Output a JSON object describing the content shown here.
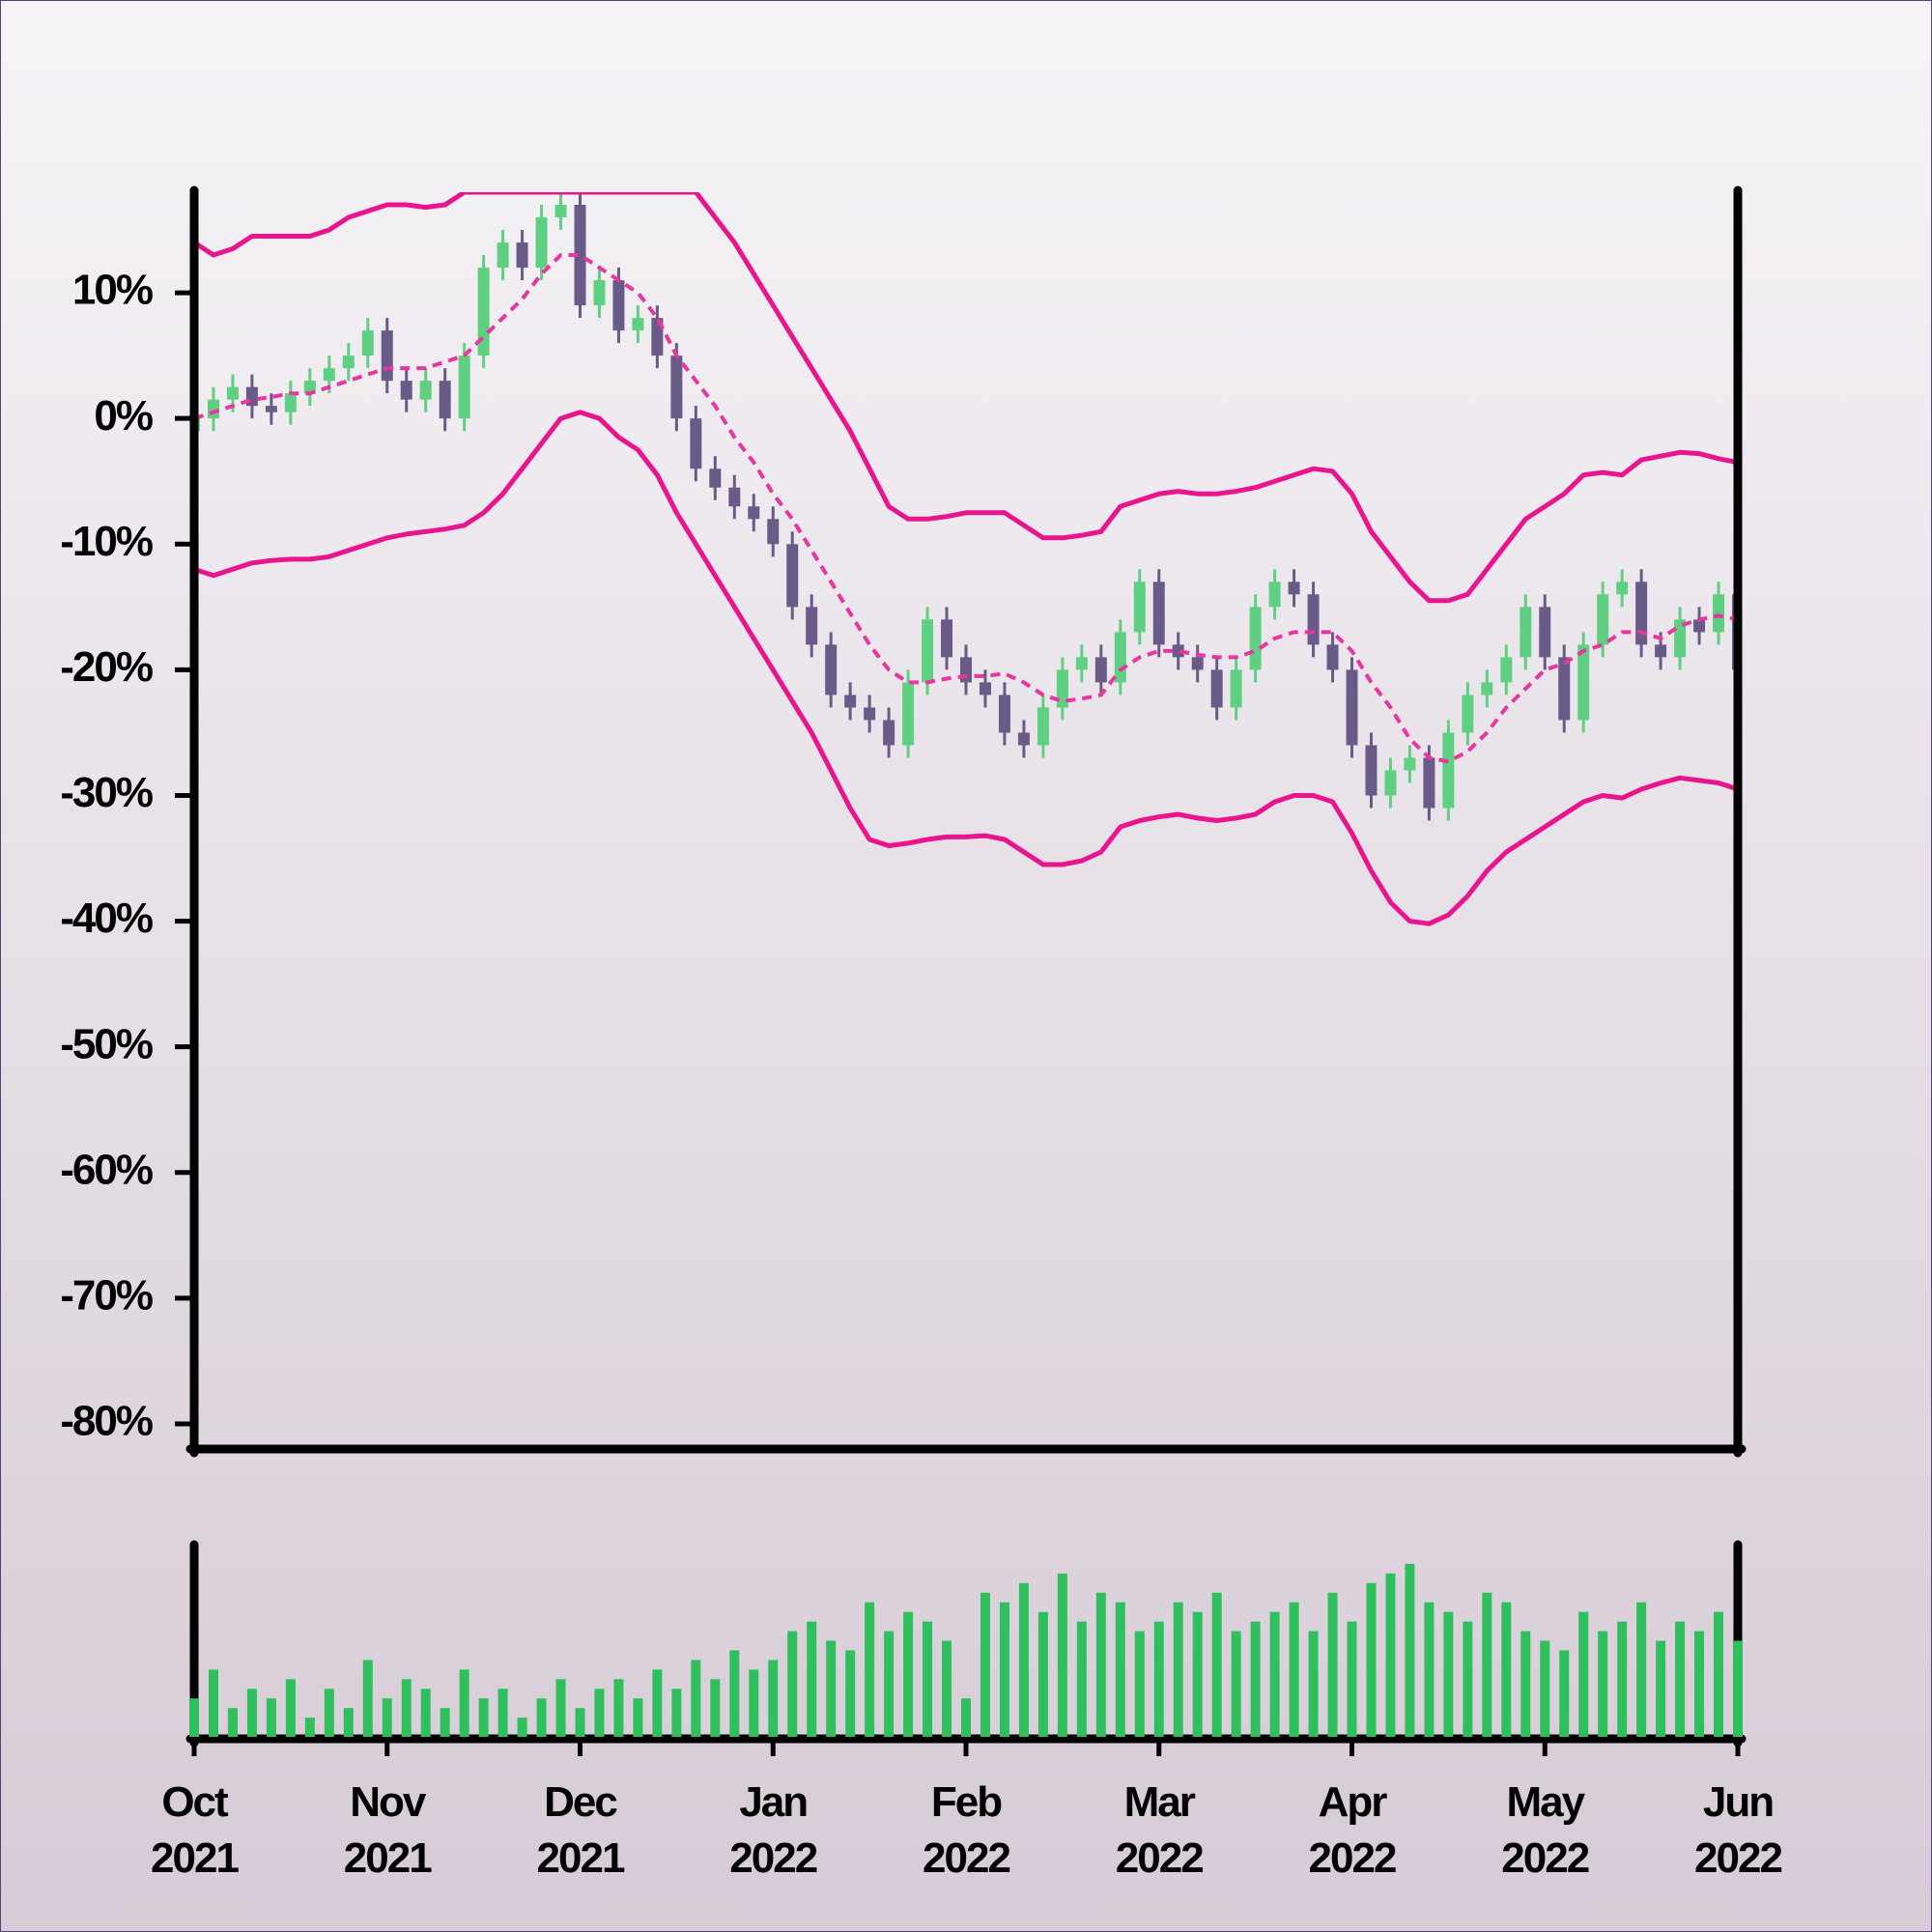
{
  "chart_data": [
    {
      "type": "candlestick",
      "open": [
        -1,
        0,
        1.5,
        2.5,
        1,
        0.5,
        2,
        3,
        4,
        5,
        7,
        3,
        1.5,
        3,
        0,
        5,
        12,
        14,
        12,
        16,
        17,
        9,
        11,
        7,
        8,
        5,
        0,
        -4,
        -5.5,
        -7,
        -8,
        -10,
        -15,
        -18,
        -22,
        -23,
        -24,
        -26,
        -21,
        -16,
        -19,
        -21,
        -22,
        -25,
        -26,
        -23,
        -20,
        -19,
        -21,
        -17,
        -13,
        -18,
        -19,
        -20,
        -23,
        -20,
        -15,
        -13,
        -14,
        -18,
        -20,
        -26,
        -30,
        -28,
        -27,
        -31,
        -25,
        -22,
        -21,
        -19,
        -15,
        -19,
        -24,
        -18,
        -14,
        -13,
        -18,
        -19,
        -16,
        -17,
        -14
      ],
      "high": [
        1,
        2.5,
        3.5,
        3.5,
        2,
        3,
        4,
        5,
        6,
        8,
        8,
        4,
        4,
        4,
        6,
        13,
        15,
        15,
        17,
        18,
        18,
        12,
        12,
        9,
        9,
        6,
        1,
        -3,
        -4.5,
        -6,
        -7,
        -9,
        -14,
        -17,
        -21,
        -22,
        -23,
        -20,
        -15,
        -15,
        -18,
        -20,
        -21,
        -24,
        -22,
        -19,
        -18,
        -18,
        -16,
        -12,
        -12,
        -17,
        -18,
        -19,
        -19,
        -14,
        -12,
        -12,
        -13,
        -17,
        -19,
        -25,
        -27,
        -26,
        -26,
        -24,
        -21,
        -20,
        -18,
        -14,
        -14,
        -18,
        -17,
        -13,
        -12,
        -12,
        -17,
        -15,
        -15,
        -13,
        -13
      ],
      "low": [
        -2,
        -1,
        0.5,
        0,
        -0.5,
        -0.5,
        1,
        2,
        3,
        4,
        2,
        0.5,
        0.5,
        -1,
        -1,
        4,
        11,
        11,
        11,
        15,
        8,
        8,
        6,
        6,
        4,
        -1,
        -5,
        -6.5,
        -8,
        -9,
        -11,
        -16,
        -19,
        -23,
        -24,
        -25,
        -27,
        -27,
        -22,
        -20,
        -22,
        -23,
        -26,
        -27,
        -27,
        -24,
        -21,
        -22,
        -22,
        -18,
        -19,
        -20,
        -21,
        -24,
        -24,
        -21,
        -16,
        -15,
        -19,
        -21,
        -27,
        -31,
        -31,
        -29,
        -32,
        -32,
        -26,
        -23,
        -22,
        -20,
        -20,
        -25,
        -25,
        -19,
        -15,
        -19,
        -20,
        -20,
        -18,
        -18,
        -21
      ],
      "close": [
        0,
        1.5,
        2.5,
        1,
        0.5,
        2,
        3,
        4,
        5,
        7,
        3,
        1.5,
        3,
        0,
        5,
        12,
        14,
        12,
        16,
        17,
        9,
        11,
        7,
        8,
        5,
        0,
        -4,
        -5.5,
        -7,
        -8,
        -10,
        -15,
        -18,
        -22,
        -23,
        -24,
        -26,
        -21,
        -16,
        -19,
        -21,
        -22,
        -25,
        -26,
        -23,
        -20,
        -19,
        -21,
        -17,
        -13,
        -18,
        -19,
        -20,
        -23,
        -20,
        -15,
        -13,
        -14,
        -18,
        -20,
        -26,
        -30,
        -28,
        -27,
        -31,
        -25,
        -22,
        -21,
        -19,
        -15,
        -19,
        -24,
        -18,
        -14,
        -13,
        -18,
        -19,
        -16,
        -17,
        -14,
        -20
      ],
      "up_color": "#5fd082",
      "down_color": "#6a5a88",
      "series": [
        {
          "color": "#e8158f",
          "dashed": false,
          "values": [
            14,
            13,
            13.5,
            14.5,
            14.5,
            14.5,
            14.5,
            15,
            16,
            16.5,
            17,
            17,
            16.8,
            17,
            18,
            18,
            18,
            18,
            18,
            18,
            18,
            18,
            18,
            18,
            18,
            18,
            18,
            16,
            14,
            11.5,
            9,
            6.5,
            4,
            1.5,
            -1,
            -4,
            -7,
            -8,
            -8,
            -7.8,
            -7.5,
            -7.5,
            -7.5,
            -8.5,
            -9.5,
            -9.5,
            -9.3,
            -9,
            -7,
            -6.5,
            -6,
            -5.8,
            -6,
            -6,
            -5.8,
            -5.5,
            -5,
            -4.5,
            -4,
            -4.2,
            -6,
            -9,
            -11,
            -13,
            -14.5,
            -14.5,
            -14,
            -12,
            -10,
            -8,
            -7,
            -6,
            -4.5,
            -4.3,
            -4.5,
            -3.3,
            -3,
            -2.7,
            -2.8,
            -3.2,
            -3.5
          ]
        },
        {
          "color": "#e8359f",
          "dashed": true,
          "values": [
            0,
            0.5,
            1,
            1.5,
            1.7,
            2,
            2,
            2.5,
            3,
            3.5,
            4,
            4,
            4,
            4.5,
            5,
            6.5,
            8,
            9.5,
            11.5,
            13,
            13,
            12,
            11,
            10,
            8,
            5,
            3,
            1,
            -1.5,
            -3.5,
            -6,
            -8,
            -10.5,
            -13,
            -15.5,
            -18,
            -20,
            -21,
            -21,
            -20.7,
            -20.5,
            -20.5,
            -20.3,
            -21,
            -22,
            -22.5,
            -22.3,
            -22,
            -20,
            -19,
            -18.5,
            -18.5,
            -18.8,
            -19,
            -19,
            -18.5,
            -17.5,
            -17,
            -17,
            -17,
            -18.5,
            -21,
            -23,
            -25.5,
            -27,
            -27.3,
            -26.5,
            -25,
            -23,
            -21.5,
            -20,
            -19.5,
            -18.5,
            -18,
            -17,
            -17,
            -17.5,
            -16.5,
            -16,
            -15.7,
            -16
          ]
        },
        {
          "color": "#e8158f",
          "dashed": false,
          "values": [
            -12,
            -12.5,
            -12,
            -11.5,
            -11.3,
            -11.2,
            -11.2,
            -11,
            -10.5,
            -10,
            -9.5,
            -9.2,
            -9,
            -8.8,
            -8.5,
            -7.5,
            -6,
            -4,
            -2,
            0,
            0.5,
            0,
            -1.5,
            -2.5,
            -4.5,
            -7.5,
            -10,
            -12.5,
            -15,
            -17.5,
            -20,
            -22.5,
            -25,
            -28,
            -31,
            -33.5,
            -34,
            -33.8,
            -33.5,
            -33.3,
            -33.3,
            -33.2,
            -33.5,
            -34.5,
            -35.5,
            -35.5,
            -35.2,
            -34.5,
            -32.5,
            -32,
            -31.7,
            -31.5,
            -31.8,
            -32,
            -31.8,
            -31.5,
            -30.5,
            -30,
            -30,
            -30.5,
            -33,
            -36,
            -38.5,
            -40,
            -40.2,
            -39.5,
            -38,
            -36,
            -34.5,
            -33.5,
            -32.5,
            -31.5,
            -30.5,
            -30,
            -30.2,
            -29.5,
            -29,
            -28.6,
            -28.8,
            -29,
            -29.5
          ]
        }
      ],
      "ylim": [
        -82,
        18
      ],
      "yticks": [
        {
          "value": 10,
          "label": "10%"
        },
        {
          "value": 0,
          "label": "0%"
        },
        {
          "value": -10,
          "label": "-10%"
        },
        {
          "value": -20,
          "label": "-20%"
        },
        {
          "value": -30,
          "label": "-30%"
        },
        {
          "value": -40,
          "label": "-40%"
        },
        {
          "value": -50,
          "label": "-50%"
        },
        {
          "value": -60,
          "label": "-60%"
        },
        {
          "value": -70,
          "label": "-70%"
        },
        {
          "value": -80,
          "label": "-80%"
        }
      ]
    },
    {
      "type": "bar",
      "color": "#2fbf5c",
      "categories": [
        "Oct\n2021",
        null,
        null,
        null,
        null,
        null,
        null,
        null,
        null,
        null,
        "Nov\n2021",
        null,
        null,
        null,
        null,
        null,
        null,
        null,
        null,
        null,
        "Dec\n2021",
        null,
        null,
        null,
        null,
        null,
        null,
        null,
        null,
        null,
        "Jan\n2022",
        null,
        null,
        null,
        null,
        null,
        null,
        null,
        null,
        null,
        "Feb\n2022",
        null,
        null,
        null,
        null,
        null,
        null,
        null,
        null,
        null,
        "Mar\n2022",
        null,
        null,
        null,
        null,
        null,
        null,
        null,
        null,
        null,
        "Apr\n2022",
        null,
        null,
        null,
        null,
        null,
        null,
        null,
        null,
        null,
        "May\n2022",
        null,
        null,
        null,
        null,
        null,
        null,
        null,
        null,
        null,
        "Jun\n2022"
      ],
      "values": [
        20,
        35,
        15,
        25,
        20,
        30,
        10,
        25,
        15,
        40,
        20,
        30,
        25,
        15,
        35,
        20,
        25,
        10,
        20,
        30,
        15,
        25,
        30,
        20,
        35,
        25,
        40,
        30,
        45,
        35,
        40,
        55,
        60,
        50,
        45,
        70,
        55,
        65,
        60,
        50,
        20,
        75,
        70,
        80,
        65,
        85,
        60,
        75,
        70,
        55,
        60,
        70,
        65,
        75,
        55,
        60,
        65,
        70,
        55,
        75,
        60,
        80,
        85,
        90,
        70,
        65,
        60,
        75,
        70,
        55,
        50,
        45,
        65,
        55,
        60,
        70,
        50,
        60,
        55,
        65,
        50
      ],
      "ylim": [
        0,
        100
      ]
    }
  ]
}
